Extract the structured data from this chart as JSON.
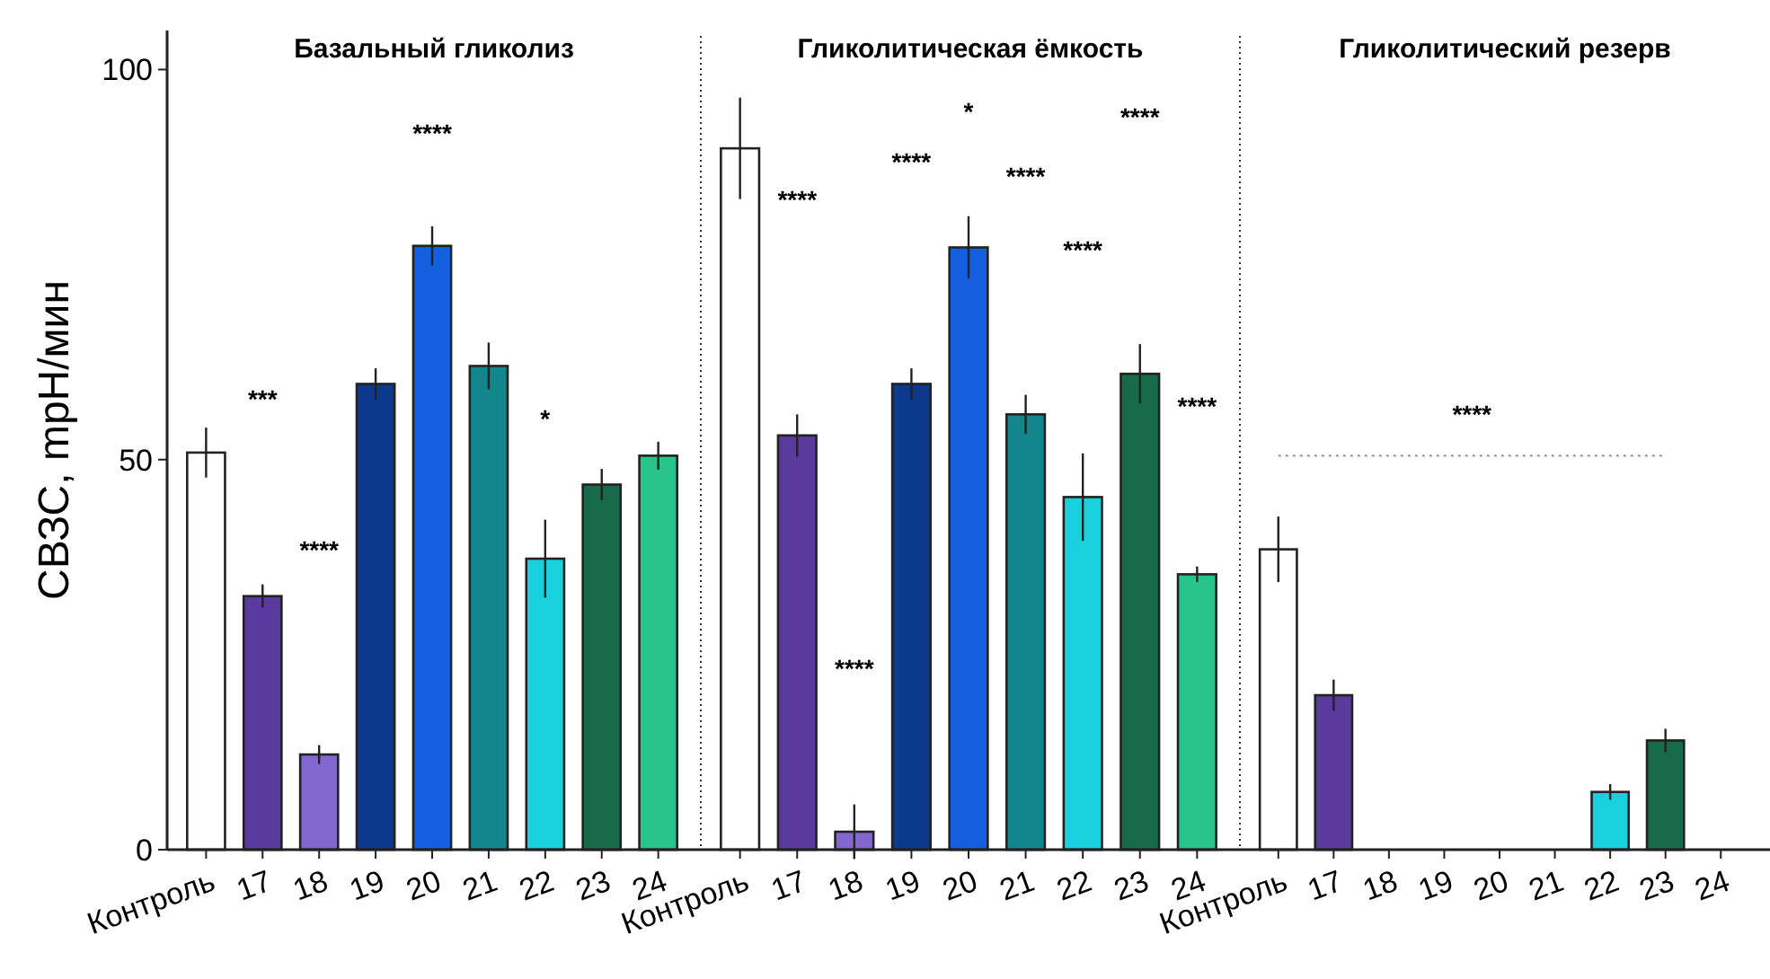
{
  "chart_data": [
    {
      "type": "bar",
      "title": "Базальный гликолиз",
      "ylabel": "СВЗС, mpH/мин",
      "categories": [
        "Контроль",
        "17",
        "18",
        "19",
        "20",
        "21",
        "22",
        "23",
        "24"
      ],
      "values": [
        50.9,
        32.5,
        12.2,
        59.7,
        77.4,
        62,
        37.3,
        46.8,
        50.5
      ],
      "errors": [
        3.2,
        1.5,
        1.2,
        2,
        2.5,
        3,
        5,
        2,
        1.8
      ],
      "colors": [
        "#ffffff",
        "#5b3a9e",
        "#8466d0",
        "#0d3a8c",
        "#1560e0",
        "#12868a",
        "#1ad0dc",
        "#176a4c",
        "#27c48c"
      ],
      "ylim": [
        0,
        105
      ],
      "yticks": [
        0,
        50,
        100
      ],
      "annotations": [
        "***",
        "****",
        "****",
        "*"
      ]
    },
    {
      "type": "bar",
      "title": "Гликолитическая ёмкость",
      "categories": [
        "Контроль",
        "17",
        "18",
        "19",
        "20",
        "21",
        "22",
        "23",
        "24"
      ],
      "values": [
        89.9,
        53.1,
        2.3,
        59.7,
        77.2,
        55.8,
        45.2,
        61,
        35.3
      ],
      "errors": [
        6.5,
        2.7,
        3.5,
        2,
        4,
        2.5,
        5.6,
        3.8,
        1
      ],
      "colors": [
        "#ffffff",
        "#5b3a9e",
        "#8466d0",
        "#0d3a8c",
        "#1560e0",
        "#12868a",
        "#1ad0dc",
        "#176a4c",
        "#27c48c"
      ],
      "ylim": [
        0,
        105
      ],
      "tick_labels": "x",
      "annotations": [
        "****",
        "****",
        "****",
        "*",
        "****",
        "****",
        "****",
        "****"
      ]
    },
    {
      "type": "bar",
      "title": "Гликолитический резерв",
      "categories": [
        "Контроль",
        "17",
        "18",
        "19",
        "20",
        "21",
        "22",
        "23",
        "24"
      ],
      "values": [
        38.5,
        19.8,
        0,
        0,
        0,
        0,
        7.4,
        14,
        0
      ],
      "errors": [
        4.2,
        2,
        null,
        null,
        null,
        null,
        1,
        1.5,
        null
      ],
      "colors": [
        "#ffffff",
        "#5b3a9e",
        "#8466d0",
        "#0d3a8c",
        "#1560e0",
        "#12868a",
        "#1ad0dc",
        "#176a4c",
        "#27c48c"
      ],
      "ylim": [
        0,
        105
      ],
      "tick_labels": "x",
      "ref_lines": [
        {
          "axis": "y",
          "value": 50.5,
          "label": "****",
          "line_style": "dotted",
          "color": "#999999"
        }
      ]
    }
  ]
}
